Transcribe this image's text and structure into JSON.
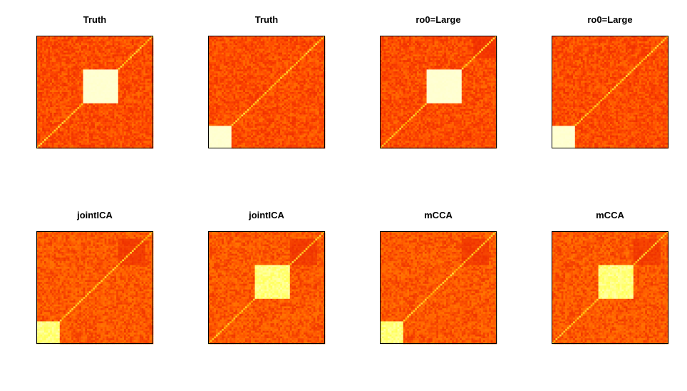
{
  "chart_data": [
    {
      "type": "heatmap",
      "title": "Truth",
      "n": 60,
      "base_color": "#ff4a00",
      "block_color": "#ffffcc",
      "blocks": [
        {
          "start": 24,
          "end": 42
        }
      ],
      "faint_blocks": []
    },
    {
      "type": "heatmap",
      "title": "Truth",
      "n": 60,
      "base_color": "#ff4a00",
      "block_color": "#ffffcc",
      "blocks": [
        {
          "start": 0,
          "end": 12
        }
      ],
      "faint_blocks": []
    },
    {
      "type": "heatmap",
      "title": "ro0=Large",
      "n": 60,
      "base_color": "#ff4a00",
      "block_color": "#ffffcc",
      "blocks": [
        {
          "start": 24,
          "end": 42
        }
      ],
      "faint_blocks": [
        {
          "start": 48,
          "end": 60
        }
      ]
    },
    {
      "type": "heatmap",
      "title": "ro0=Large",
      "n": 60,
      "base_color": "#ff4a00",
      "block_color": "#ffffcc",
      "blocks": [
        {
          "start": 0,
          "end": 12
        }
      ],
      "faint_blocks": []
    },
    {
      "type": "heatmap",
      "title": "jointICA",
      "n": 60,
      "base_color": "#ff5a00",
      "block_color": "#ffff55",
      "blocks": [
        {
          "start": 0,
          "end": 12
        }
      ],
      "faint_blocks": [
        {
          "start": 42,
          "end": 56
        }
      ]
    },
    {
      "type": "heatmap",
      "title": "jointICA",
      "n": 60,
      "base_color": "#ff5a00",
      "block_color": "#ffff55",
      "blocks": [
        {
          "start": 24,
          "end": 42
        }
      ],
      "faint_blocks": [
        {
          "start": 42,
          "end": 56
        }
      ]
    },
    {
      "type": "heatmap",
      "title": "mCCA",
      "n": 60,
      "base_color": "#ff5a00",
      "block_color": "#ffff55",
      "blocks": [
        {
          "start": 0,
          "end": 12
        }
      ],
      "faint_blocks": [
        {
          "start": 42,
          "end": 56
        }
      ]
    },
    {
      "type": "heatmap",
      "title": "mCCA",
      "n": 60,
      "base_color": "#ff5a00",
      "block_color": "#ffff55",
      "blocks": [
        {
          "start": 24,
          "end": 42
        }
      ],
      "faint_blocks": [
        {
          "start": 42,
          "end": 56
        }
      ]
    }
  ]
}
